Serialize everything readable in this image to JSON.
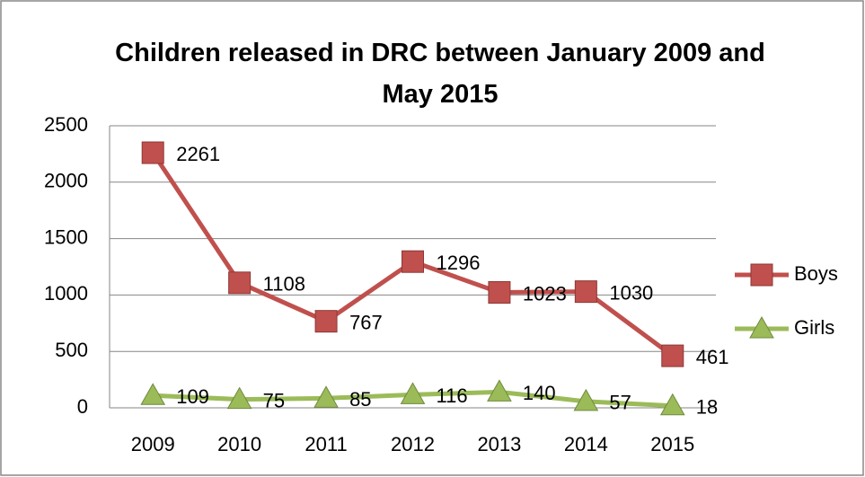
{
  "chart_data": {
    "type": "line",
    "title": "Children released in DRC between January 2009 and May 2015",
    "categories": [
      "2009",
      "2010",
      "2011",
      "2012",
      "2013",
      "2014",
      "2015"
    ],
    "series": [
      {
        "name": "Boys",
        "color": "#c0504d",
        "values": [
          2261,
          1108,
          767,
          1296,
          1023,
          1030,
          461
        ]
      },
      {
        "name": "Girls",
        "color": "#9bbb59",
        "values": [
          109,
          75,
          85,
          116,
          140,
          57,
          18
        ]
      }
    ],
    "ylim": [
      0,
      2500
    ],
    "yticks": [
      0,
      500,
      1000,
      1500,
      2000,
      2500
    ],
    "grid": true,
    "legend": "right"
  }
}
